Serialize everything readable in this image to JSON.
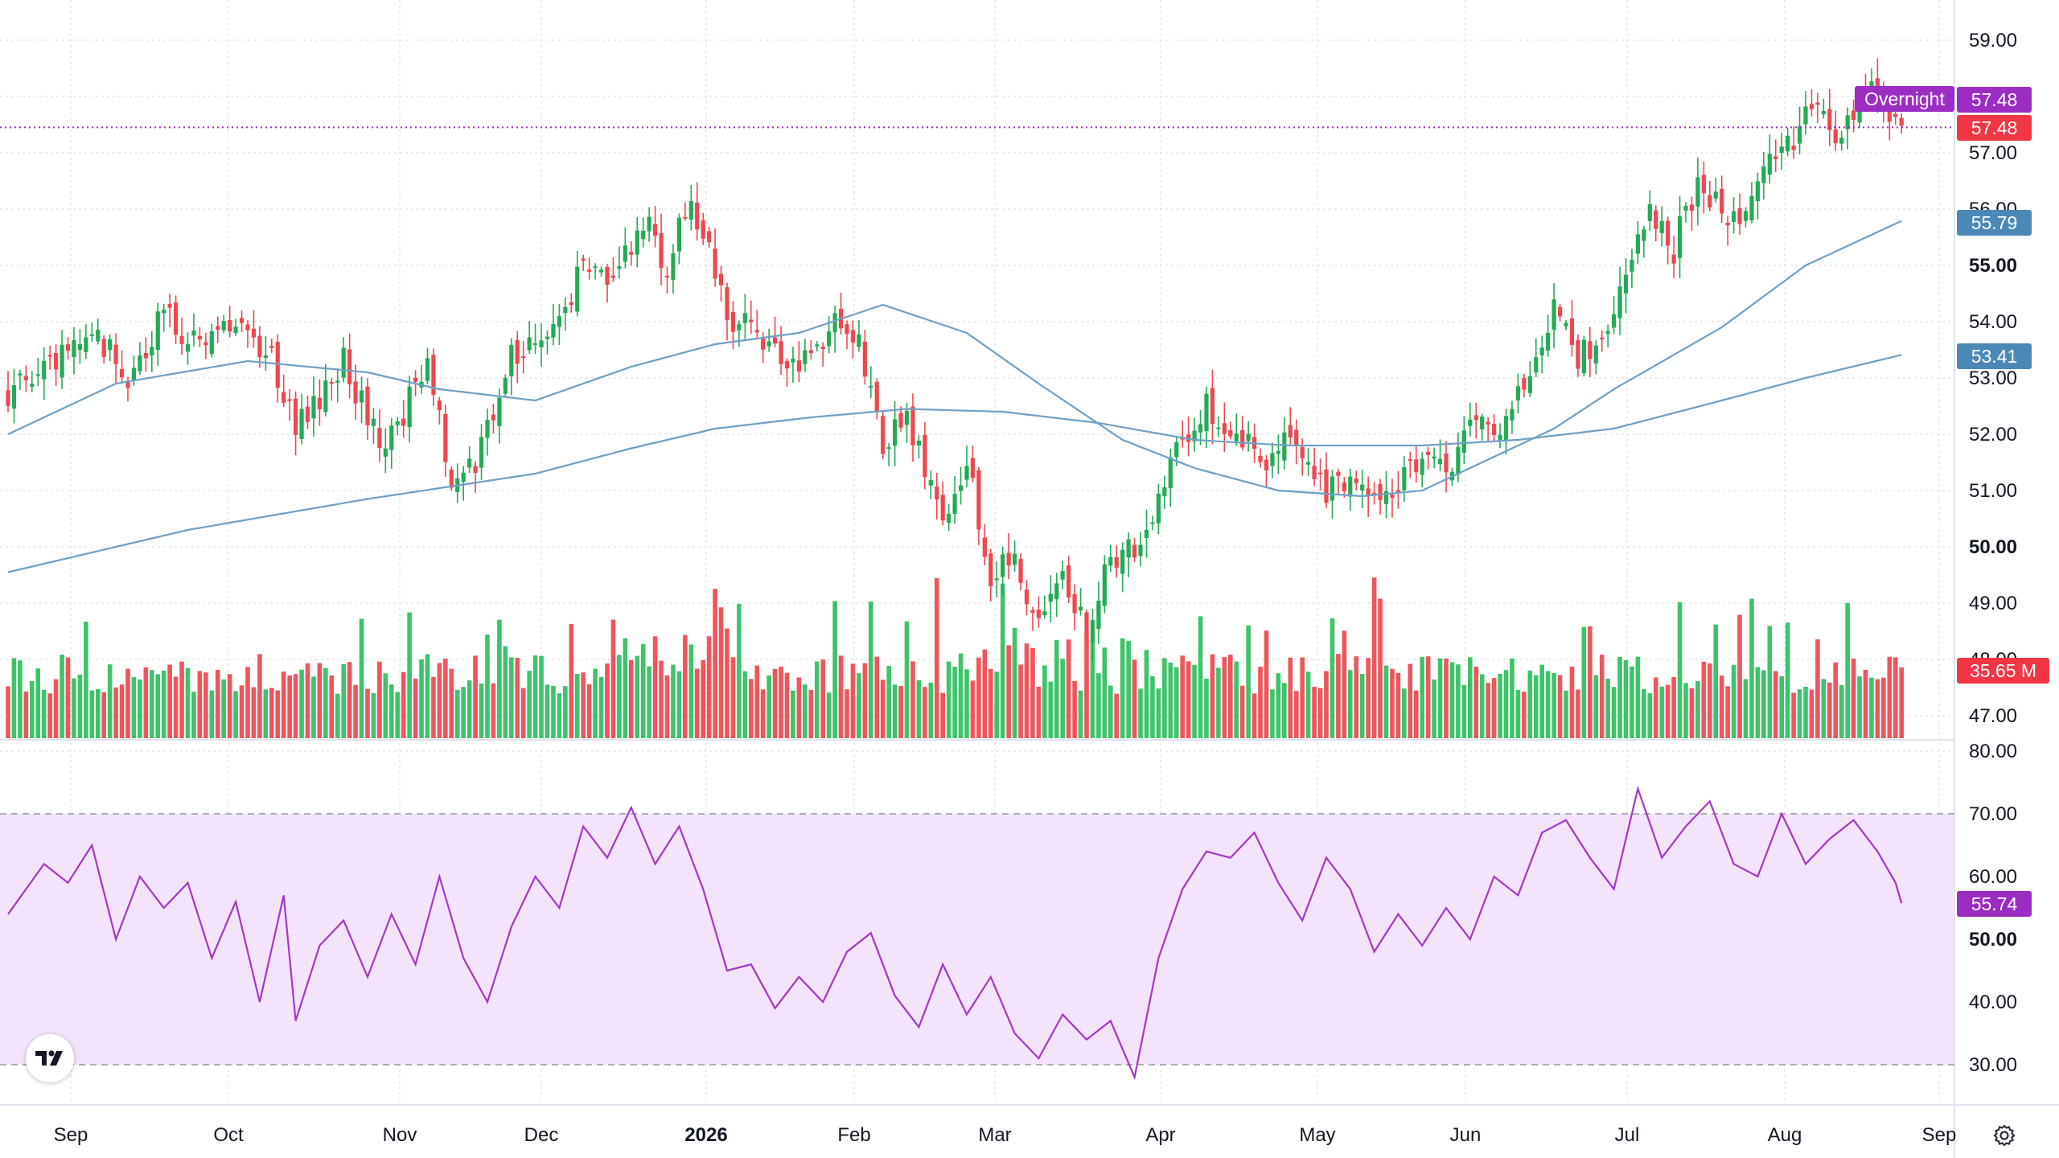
{
  "chart_data": {
    "type": "candlestick",
    "x_ticks": [
      "Sep",
      "Oct",
      "Nov",
      "Dec",
      "2026",
      "Feb",
      "Mar",
      "Apr",
      "May",
      "Jun",
      "Jul",
      "Aug",
      "Sep"
    ],
    "price_axis": {
      "ylim": [
        46.5,
        59.5
      ],
      "ticks": [
        "59.00",
        "58.00",
        "57.00",
        "56.00",
        "55.00",
        "54.00",
        "53.00",
        "52.00",
        "51.00",
        "50.00",
        "49.00",
        "48.00",
        "47.00"
      ],
      "bold_ticks": [
        "55.00",
        "50.00"
      ]
    },
    "rsi_axis": {
      "ylim": [
        25,
        80
      ],
      "ticks": [
        "80.00",
        "70.00",
        "60.00",
        "50.00",
        "40.00",
        "30.00"
      ],
      "bold_ticks": [
        "50.00"
      ],
      "band": [
        30,
        70
      ]
    },
    "waypoints": [
      [
        0,
        52.7
      ],
      [
        8,
        53.2
      ],
      [
        14,
        53.9
      ],
      [
        20,
        53.0
      ],
      [
        26,
        54.2
      ],
      [
        32,
        53.5
      ],
      [
        38,
        54.0
      ],
      [
        44,
        53.4
      ],
      [
        48,
        52.1
      ],
      [
        52,
        52.6
      ],
      [
        56,
        53.3
      ],
      [
        62,
        51.8
      ],
      [
        66,
        52.4
      ],
      [
        70,
        53.3
      ],
      [
        74,
        51.2
      ],
      [
        78,
        51.4
      ],
      [
        84,
        53.4
      ],
      [
        90,
        53.7
      ],
      [
        96,
        55.0
      ],
      [
        100,
        54.6
      ],
      [
        106,
        55.8
      ],
      [
        110,
        55.0
      ],
      [
        114,
        56.2
      ],
      [
        118,
        54.9
      ],
      [
        120,
        54.0
      ],
      [
        124,
        53.9
      ],
      [
        130,
        53.2
      ],
      [
        134,
        53.4
      ],
      [
        138,
        54.0
      ],
      [
        142,
        53.5
      ],
      [
        146,
        51.9
      ],
      [
        150,
        52.3
      ],
      [
        156,
        50.5
      ],
      [
        160,
        51.5
      ],
      [
        164,
        49.5
      ],
      [
        168,
        49.7
      ],
      [
        172,
        48.8
      ],
      [
        176,
        49.3
      ],
      [
        180,
        48.6
      ],
      [
        184,
        49.8
      ],
      [
        188,
        50.0
      ],
      [
        192,
        50.8
      ],
      [
        196,
        51.9
      ],
      [
        200,
        52.6
      ],
      [
        204,
        52.0
      ],
      [
        210,
        51.6
      ],
      [
        214,
        51.9
      ],
      [
        220,
        51.0
      ],
      [
        226,
        51.2
      ],
      [
        232,
        51.0
      ],
      [
        236,
        51.6
      ],
      [
        240,
        51.3
      ],
      [
        244,
        52.0
      ],
      [
        250,
        52.3
      ],
      [
        254,
        53.3
      ],
      [
        258,
        54.3
      ],
      [
        262,
        53.4
      ],
      [
        266,
        53.6
      ],
      [
        270,
        55.0
      ],
      [
        274,
        56.0
      ],
      [
        278,
        55.3
      ],
      [
        282,
        56.5
      ],
      [
        286,
        55.9
      ],
      [
        290,
        56.0
      ],
      [
        294,
        57.0
      ],
      [
        298,
        57.2
      ],
      [
        302,
        58.0
      ],
      [
        305,
        57.4
      ],
      [
        308,
        57.7
      ],
      [
        311,
        58.1
      ],
      [
        316,
        57.48
      ]
    ],
    "ma_fast": [
      [
        0,
        52.0
      ],
      [
        18,
        52.9
      ],
      [
        40,
        53.3
      ],
      [
        60,
        53.1
      ],
      [
        72,
        52.8
      ],
      [
        88,
        52.6
      ],
      [
        104,
        53.2
      ],
      [
        118,
        53.6
      ],
      [
        132,
        53.8
      ],
      [
        146,
        54.3
      ],
      [
        160,
        53.8
      ],
      [
        172,
        52.9
      ],
      [
        186,
        51.9
      ],
      [
        198,
        51.4
      ],
      [
        212,
        51.0
      ],
      [
        226,
        50.9
      ],
      [
        236,
        51.0
      ],
      [
        248,
        51.6
      ],
      [
        258,
        52.1
      ],
      [
        268,
        52.8
      ],
      [
        286,
        53.9
      ],
      [
        300,
        55.0
      ],
      [
        316,
        55.79
      ]
    ],
    "ma_slow": [
      [
        0,
        49.55
      ],
      [
        30,
        50.3
      ],
      [
        60,
        50.85
      ],
      [
        88,
        51.3
      ],
      [
        104,
        51.75
      ],
      [
        118,
        52.1
      ],
      [
        134,
        52.3
      ],
      [
        150,
        52.45
      ],
      [
        166,
        52.4
      ],
      [
        182,
        52.2
      ],
      [
        198,
        51.9
      ],
      [
        214,
        51.8
      ],
      [
        236,
        51.8
      ],
      [
        252,
        51.9
      ],
      [
        268,
        52.1
      ],
      [
        286,
        52.6
      ],
      [
        300,
        53.0
      ],
      [
        316,
        53.41
      ]
    ],
    "rsi": [
      [
        0,
        54
      ],
      [
        6,
        62
      ],
      [
        10,
        59
      ],
      [
        14,
        65
      ],
      [
        18,
        50
      ],
      [
        22,
        60
      ],
      [
        26,
        55
      ],
      [
        30,
        59
      ],
      [
        34,
        47
      ],
      [
        38,
        56
      ],
      [
        42,
        40
      ],
      [
        46,
        57
      ],
      [
        48,
        37
      ],
      [
        52,
        49
      ],
      [
        56,
        53
      ],
      [
        60,
        44
      ],
      [
        64,
        54
      ],
      [
        68,
        46
      ],
      [
        72,
        60
      ],
      [
        76,
        47
      ],
      [
        80,
        40
      ],
      [
        84,
        52
      ],
      [
        88,
        60
      ],
      [
        92,
        55
      ],
      [
        96,
        68
      ],
      [
        100,
        63
      ],
      [
        104,
        71
      ],
      [
        108,
        62
      ],
      [
        112,
        68
      ],
      [
        116,
        58
      ],
      [
        120,
        45
      ],
      [
        124,
        46
      ],
      [
        128,
        39
      ],
      [
        132,
        44
      ],
      [
        136,
        40
      ],
      [
        140,
        48
      ],
      [
        144,
        51
      ],
      [
        148,
        41
      ],
      [
        152,
        36
      ],
      [
        156,
        46
      ],
      [
        160,
        38
      ],
      [
        164,
        44
      ],
      [
        168,
        35
      ],
      [
        172,
        31
      ],
      [
        176,
        38
      ],
      [
        180,
        34
      ],
      [
        184,
        37
      ],
      [
        188,
        28
      ],
      [
        192,
        47
      ],
      [
        196,
        58
      ],
      [
        200,
        64
      ],
      [
        204,
        63
      ],
      [
        208,
        67
      ],
      [
        212,
        59
      ],
      [
        216,
        53
      ],
      [
        220,
        63
      ],
      [
        224,
        58
      ],
      [
        228,
        48
      ],
      [
        232,
        54
      ],
      [
        236,
        49
      ],
      [
        240,
        55
      ],
      [
        244,
        50
      ],
      [
        248,
        60
      ],
      [
        252,
        57
      ],
      [
        256,
        67
      ],
      [
        260,
        69
      ],
      [
        264,
        63
      ],
      [
        268,
        58
      ],
      [
        272,
        74
      ],
      [
        276,
        63
      ],
      [
        280,
        68
      ],
      [
        284,
        72
      ],
      [
        288,
        62
      ],
      [
        292,
        60
      ],
      [
        296,
        70
      ],
      [
        300,
        62
      ],
      [
        304,
        66
      ],
      [
        308,
        69
      ],
      [
        312,
        64
      ],
      [
        315,
        59
      ],
      [
        316,
        55.74
      ]
    ],
    "labels": {
      "session_tag": "Overnight",
      "last_price": "57.48",
      "session_price": "57.48",
      "ma_fast_value": "55.79",
      "ma_slow_value": "53.41",
      "volume_value": "35.65 M",
      "rsi_value": "55.74"
    },
    "colors": {
      "up": "#22ab55",
      "down": "#f0464e",
      "ma": "#6fa0c5",
      "ma_label": "#4c88b6",
      "rsi_line": "#a338c7",
      "rsi_band": "#f3e3fc",
      "overnight": "#9b2dc3",
      "last_price": "#f23645",
      "grid": "#e6e6ea",
      "text": "#131722"
    }
  },
  "icons": {
    "logo": "tradingview-logo-icon",
    "settings": "settings-gear-icon"
  }
}
